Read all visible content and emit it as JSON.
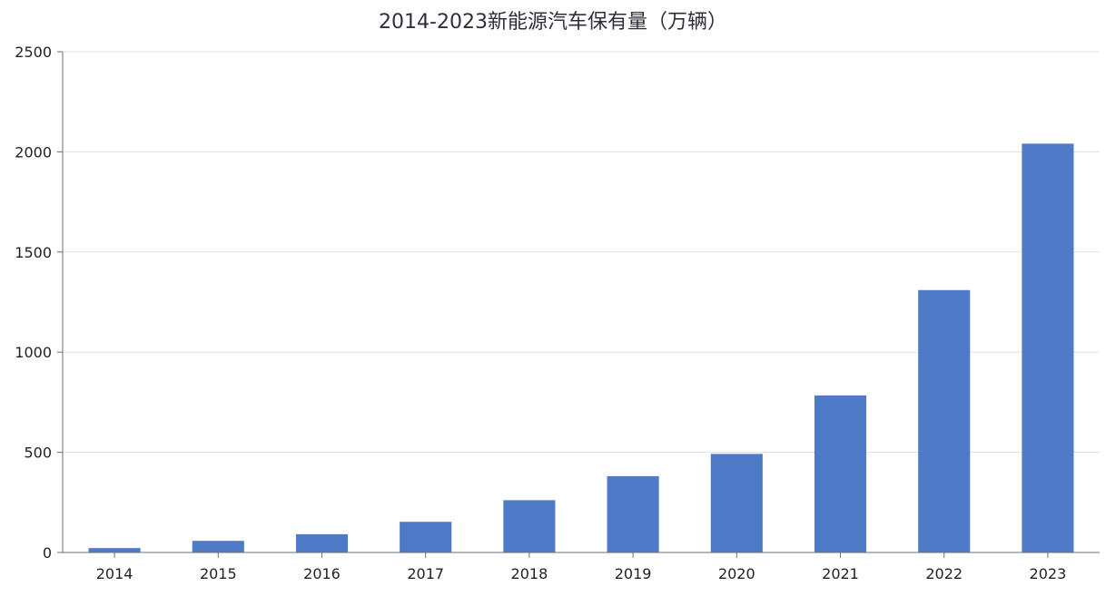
{
  "chart_data": {
    "type": "bar",
    "title": "2014-2023新能源汽车保有量（万辆）",
    "categories": [
      "2014",
      "2015",
      "2016",
      "2017",
      "2018",
      "2019",
      "2020",
      "2021",
      "2022",
      "2023"
    ],
    "values": [
      22,
      58,
      91,
      153,
      261,
      381,
      492,
      784,
      1310,
      2041
    ],
    "ylim": [
      0,
      2500
    ],
    "yticks": [
      0,
      500,
      1000,
      1500,
      2000,
      2500
    ],
    "grid": true,
    "bar_color": "#4e7ac7",
    "grid_color": "#e0e0e0",
    "axis_color": "#6e6e6e"
  }
}
